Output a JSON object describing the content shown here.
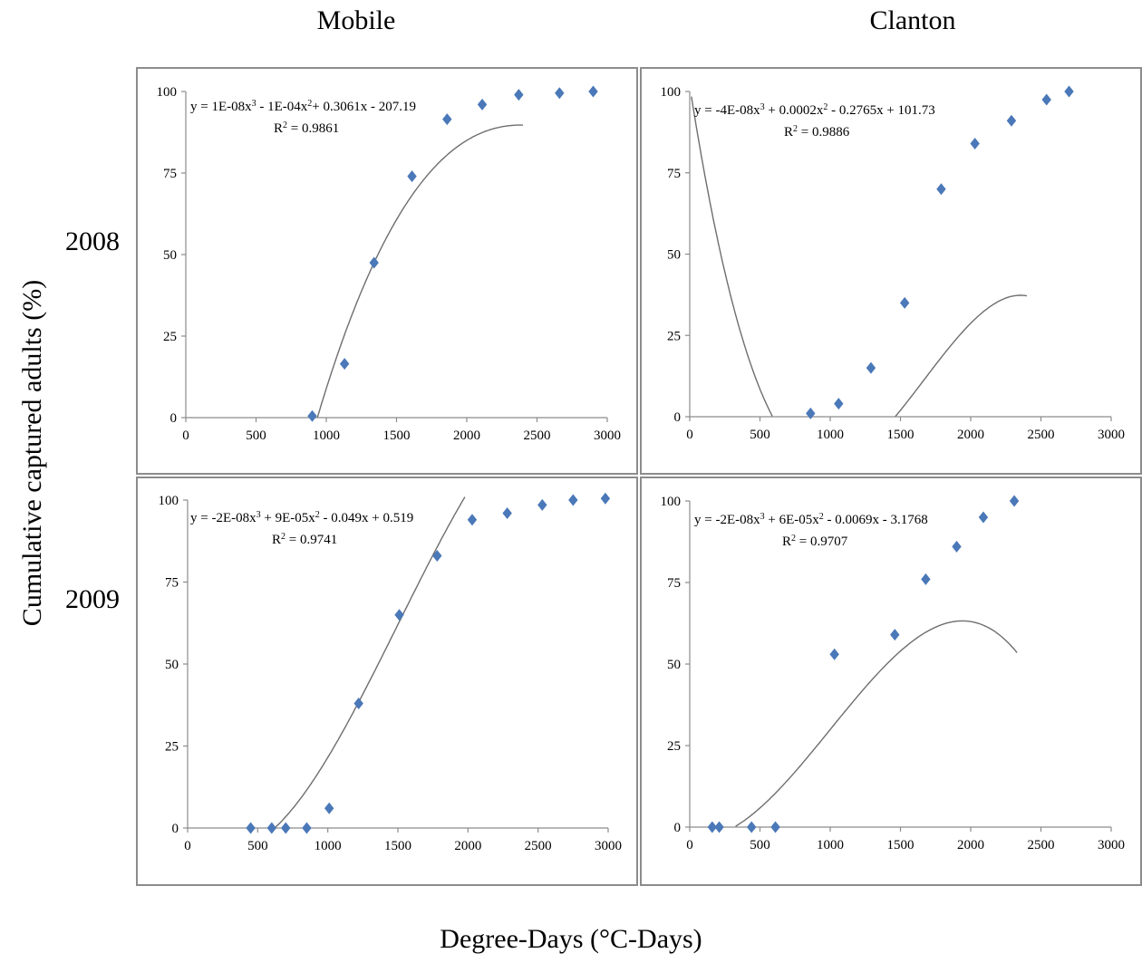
{
  "figure": {
    "col_titles": [
      "Mobile",
      "Clanton"
    ],
    "row_titles": [
      "2008",
      "2009"
    ],
    "ylabel": "Cumulative captured adults  (%)",
    "xlabel": "Degree-Days (°C-Days)"
  },
  "chart_data": [
    {
      "type": "scatter",
      "location": "Mobile",
      "year": "2008",
      "xlim": [
        0,
        3000
      ],
      "ylim": [
        0,
        100
      ],
      "xticks": [
        "0",
        "500",
        "1000",
        "1500",
        "2000",
        "2500",
        "3000"
      ],
      "yticks": [
        "0",
        "25",
        "50",
        "75",
        "100"
      ],
      "equation_parts": [
        "y = 1E-08x",
        "3",
        " - 1E-04x",
        "2",
        "+ 0.3061x - 207.19"
      ],
      "r2_parts": [
        "R",
        "2",
        " = 0.9861"
      ],
      "x": [
        900,
        1130,
        1340,
        1610,
        1860,
        2110,
        2370,
        2660,
        2900
      ],
      "y": [
        0.5,
        16.5,
        47.5,
        74,
        91.5,
        96,
        99,
        99.5,
        100
      ],
      "trend_coeffs": [
        1e-08,
        -0.0001,
        0.3061,
        -207.19
      ],
      "trend_range": [
        930,
        2400
      ]
    },
    {
      "type": "scatter",
      "location": "Clanton",
      "year": "2008",
      "xlim": [
        0,
        3000
      ],
      "ylim": [
        0,
        100
      ],
      "xticks": [
        "0",
        "500",
        "1000",
        "1500",
        "2000",
        "2500",
        "3000"
      ],
      "yticks": [
        "0",
        "25",
        "50",
        "75",
        "100"
      ],
      "equation_parts": [
        "y = -4E-08x",
        "3",
        " + 0.0002x",
        "2",
        " - 0.2765x + 101.73"
      ],
      "r2_parts": [
        "R",
        "2",
        " = 0.9886"
      ],
      "x": [
        860,
        1060,
        1290,
        1530,
        1790,
        2030,
        2290,
        2540,
        2700
      ],
      "y": [
        1,
        4,
        15,
        35,
        70,
        84,
        91,
        97.5,
        100
      ],
      "trend_coeffs": [
        -4e-08,
        0.0002,
        -0.2765,
        101.73
      ],
      "trend_range": [
        0,
        2400
      ]
    },
    {
      "type": "scatter",
      "location": "Mobile",
      "year": "2009",
      "xlim": [
        0,
        3000
      ],
      "ylim": [
        0,
        100
      ],
      "xticks": [
        "0",
        "500",
        "1000",
        "1500",
        "2000",
        "2500",
        "3000"
      ],
      "yticks": [
        "0",
        "25",
        "50",
        "75",
        "100"
      ],
      "equation_parts": [
        "y = -2E-08x",
        "3",
        " + 9E-05x",
        "2",
        " - 0.049x + 0.519"
      ],
      "r2_parts": [
        "R",
        "2",
        " = 0.9741"
      ],
      "x": [
        450,
        600,
        700,
        850,
        1010,
        1220,
        1510,
        1780,
        2030,
        2280,
        2530,
        2750,
        2980
      ],
      "y": [
        0,
        0,
        0,
        0,
        6,
        38,
        65,
        83,
        94,
        96,
        98.5,
        100,
        100.5
      ],
      "trend_coeffs": [
        -2e-08,
        9e-05,
        -0.049,
        0.519
      ],
      "trend_range": [
        600,
        2260
      ]
    },
    {
      "type": "scatter",
      "location": "Clanton",
      "year": "2009",
      "xlim": [
        0,
        3000
      ],
      "ylim": [
        0,
        100
      ],
      "xticks": [
        "0",
        "500",
        "1000",
        "1500",
        "2000",
        "2500",
        "3000"
      ],
      "yticks": [
        "0",
        "25",
        "50",
        "75",
        "100"
      ],
      "equation_parts": [
        "y = -2E-08x",
        "3",
        " + 6E-05x",
        "2",
        " - 0.0069x - 3.1768"
      ],
      "r2_parts": [
        "R",
        "2",
        " = 0.9707"
      ],
      "x": [
        160,
        210,
        440,
        610,
        1030,
        1460,
        1680,
        1900,
        2090,
        2310
      ],
      "y": [
        0,
        0,
        0,
        0,
        53,
        59,
        76,
        86,
        95,
        100
      ],
      "trend_coeffs": [
        -2e-08,
        6e-05,
        -0.0069,
        -3.1768
      ],
      "trend_range": [
        0,
        2330
      ]
    }
  ]
}
